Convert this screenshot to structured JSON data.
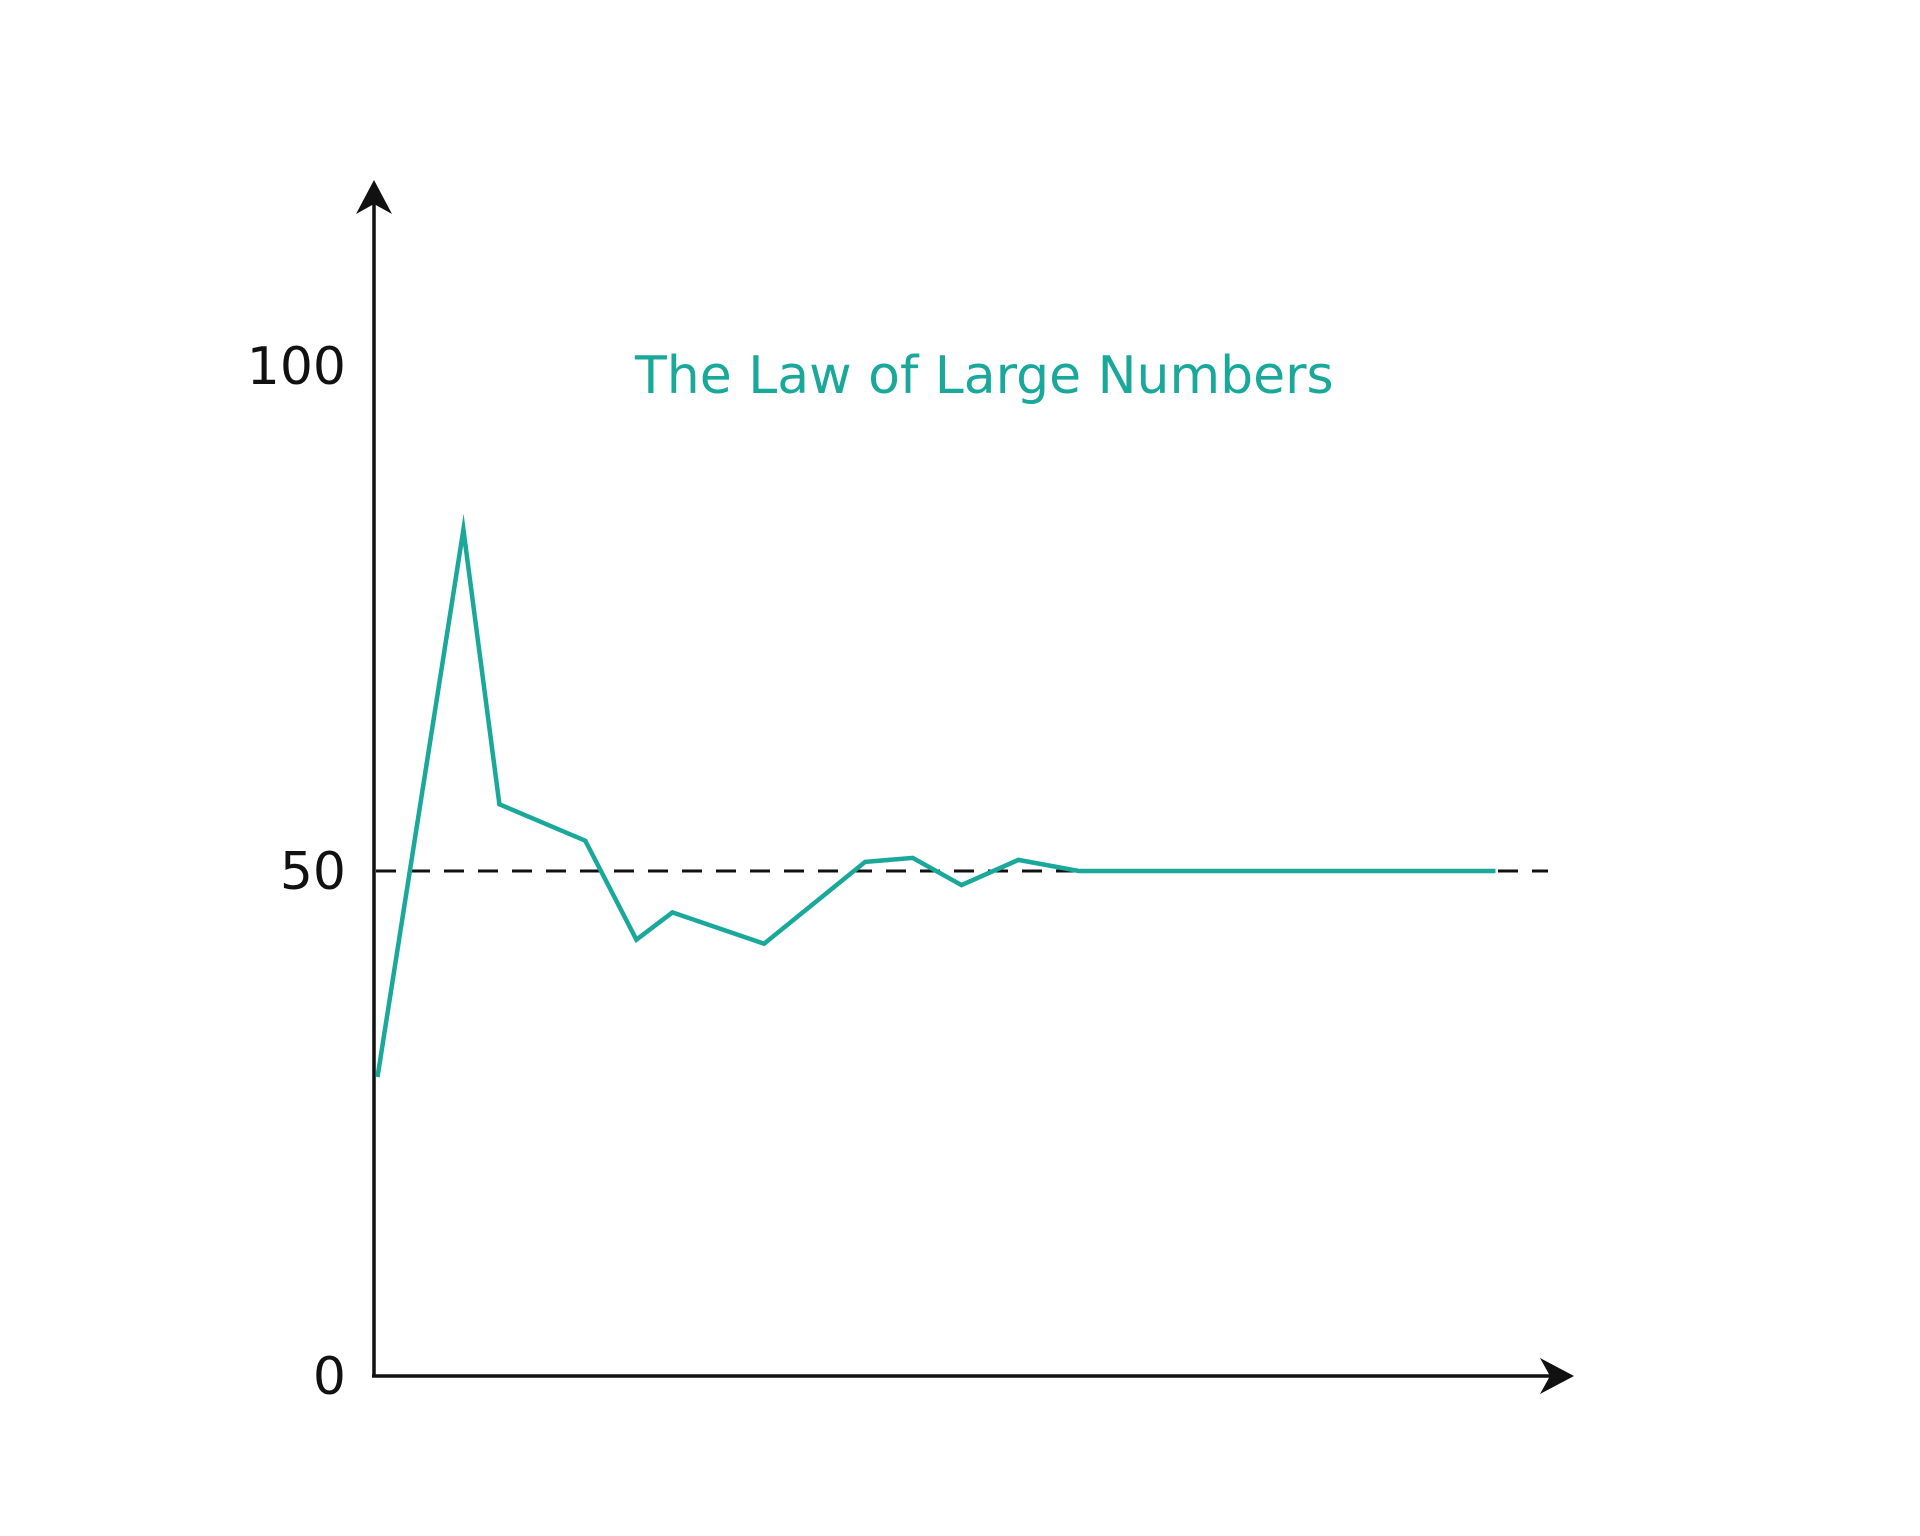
{
  "chart_data": {
    "type": "line",
    "title": "The Law of Large Numbers",
    "xlabel": "",
    "ylabel": "",
    "ylim": [
      0,
      100
    ],
    "xlim": [
      0,
      100
    ],
    "yticks": [
      {
        "value": 0,
        "label": "0"
      },
      {
        "value": 50,
        "label": "50"
      },
      {
        "value": 100,
        "label": "100"
      }
    ],
    "reference_line": {
      "y": 50,
      "style": "dashed"
    },
    "grid": false,
    "legend": "none",
    "line_color": "#19a89a",
    "axis_color": "#111111",
    "series": [
      {
        "x": [
          0.3,
          7.7,
          10.8,
          18.2,
          22.6,
          25.7,
          33.6,
          42.3,
          46.4,
          50.6,
          55.5,
          60.7,
          96.6
        ],
        "y": [
          29.6,
          83.8,
          56.6,
          53.0,
          43.2,
          45.9,
          42.8,
          50.9,
          51.3,
          48.6,
          51.1,
          50.0,
          50.0
        ]
      }
    ]
  }
}
